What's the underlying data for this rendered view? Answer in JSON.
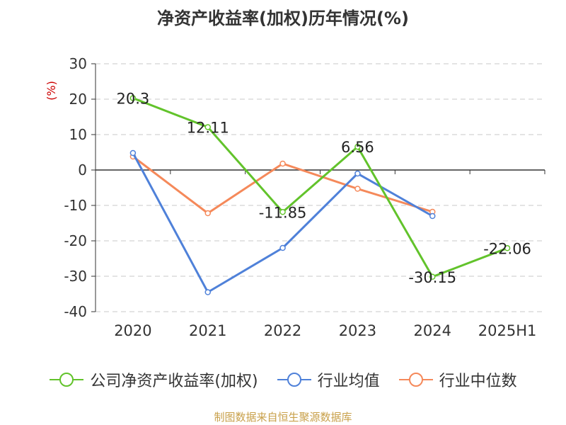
{
  "title": "净资产收益率(加权)历年情况(%)",
  "source_note": "制图数据来自恒生聚源数据库",
  "colors": {
    "grid": "#c8c8c8",
    "axis": "#333333",
    "tick_text": "#333333",
    "ylabel": "#cc0000"
  },
  "chart_data": {
    "type": "line",
    "title": "净资产收益率(加权)历年情况(%)",
    "ylabel": "(%)",
    "xlabel": "",
    "categories": [
      "2020",
      "2021",
      "2022",
      "2023",
      "2024",
      "2025H1"
    ],
    "ylim": [
      -40,
      30
    ],
    "yticks": [
      30,
      20,
      10,
      0,
      -10,
      -20,
      -30,
      -40
    ],
    "ytick_labels": [
      "30",
      "20",
      "10",
      "0",
      "-10",
      "-20",
      "-30",
      "-40"
    ],
    "grid": true,
    "legend_position": "bottom",
    "series": [
      {
        "name": "公司净资产收益率(加权)",
        "color": "#62c32b",
        "values": [
          20.3,
          12.11,
          -11.85,
          6.56,
          -30.15,
          -22.06
        ],
        "labels": [
          "20.3",
          "12.11",
          "-11.85",
          "6.56",
          "-30.15",
          "-22.06"
        ]
      },
      {
        "name": "行业均值",
        "color": "#4f81d9",
        "values": [
          4.8,
          -34.5,
          -22.0,
          -1.0,
          -13.0,
          null
        ],
        "labels": null
      },
      {
        "name": "行业中位数",
        "color": "#f5895a",
        "values": [
          3.8,
          -12.2,
          1.8,
          -5.3,
          -11.8,
          null
        ],
        "labels": null
      }
    ]
  }
}
